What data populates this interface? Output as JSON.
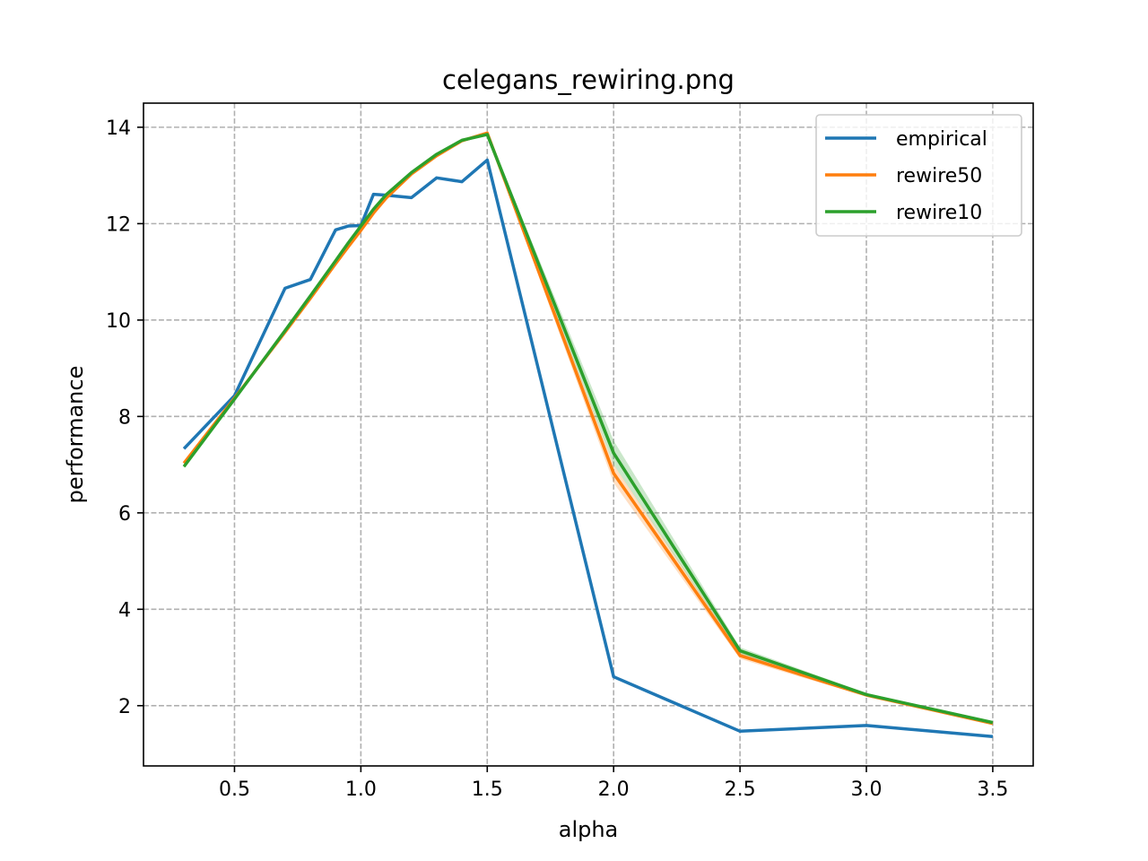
{
  "chart_data": {
    "type": "line",
    "title": "celegans_rewiring.png",
    "xlabel": "alpha",
    "ylabel": "performance",
    "xlim": [
      0.14,
      3.66
    ],
    "ylim": [
      0.75,
      14.5
    ],
    "xticks": [
      0.5,
      1.0,
      1.5,
      2.0,
      2.5,
      3.0,
      3.5
    ],
    "xtick_labels": [
      "0.5",
      "1.0",
      "1.5",
      "2.0",
      "2.5",
      "3.0",
      "3.5"
    ],
    "yticks": [
      2,
      4,
      6,
      8,
      10,
      12,
      14
    ],
    "ytick_labels": [
      "2",
      "4",
      "6",
      "8",
      "10",
      "12",
      "14"
    ],
    "grid": true,
    "legend_position": "top-right",
    "series": [
      {
        "name": "empirical",
        "color": "#1f77b4",
        "x": [
          0.3,
          0.5,
          0.7,
          0.8,
          0.9,
          0.95,
          1.0,
          1.05,
          1.1,
          1.2,
          1.3,
          1.4,
          1.5,
          2.0,
          2.5,
          3.0,
          3.5
        ],
        "y": [
          7.33,
          8.43,
          10.66,
          10.84,
          11.87,
          11.95,
          11.96,
          12.61,
          12.59,
          12.54,
          12.95,
          12.87,
          13.32,
          2.6,
          1.47,
          1.59,
          1.36
        ]
      },
      {
        "name": "rewire50",
        "color": "#ff7f0e",
        "x": [
          0.3,
          0.5,
          0.7,
          0.8,
          0.9,
          0.95,
          1.0,
          1.05,
          1.1,
          1.2,
          1.3,
          1.4,
          1.5,
          2.0,
          2.5,
          3.0,
          3.5
        ],
        "y": [
          7.03,
          8.38,
          9.75,
          10.45,
          11.17,
          11.52,
          11.86,
          12.22,
          12.53,
          13.03,
          13.41,
          13.72,
          13.88,
          6.82,
          3.04,
          2.22,
          1.63
        ],
        "band_lower": [
          7.0,
          8.35,
          9.72,
          10.42,
          11.14,
          11.49,
          11.83,
          12.19,
          12.5,
          13.0,
          13.38,
          13.69,
          13.85,
          6.62,
          2.97,
          2.19,
          1.6
        ],
        "band_upper": [
          7.06,
          8.41,
          9.78,
          10.48,
          11.2,
          11.55,
          11.89,
          12.25,
          12.56,
          13.06,
          13.44,
          13.75,
          13.91,
          7.0,
          3.11,
          2.25,
          1.66
        ]
      },
      {
        "name": "rewire10",
        "color": "#2ca02c",
        "x": [
          0.3,
          0.5,
          0.7,
          0.8,
          0.9,
          0.95,
          1.0,
          1.05,
          1.1,
          1.2,
          1.3,
          1.4,
          1.5,
          2.0,
          2.5,
          3.0,
          3.5
        ],
        "y": [
          6.96,
          8.36,
          9.78,
          10.5,
          11.23,
          11.6,
          11.95,
          12.3,
          12.6,
          13.06,
          13.44,
          13.73,
          13.85,
          7.24,
          3.14,
          2.23,
          1.65
        ],
        "band_lower": [
          6.93,
          8.33,
          9.75,
          10.47,
          11.2,
          11.57,
          11.92,
          12.27,
          12.57,
          13.03,
          13.41,
          13.7,
          13.82,
          7.0,
          3.07,
          2.2,
          1.62
        ],
        "band_upper": [
          6.99,
          8.39,
          9.81,
          10.53,
          11.26,
          11.63,
          11.98,
          12.33,
          12.63,
          13.09,
          13.47,
          13.76,
          13.88,
          7.5,
          3.21,
          2.26,
          1.68
        ]
      }
    ]
  }
}
